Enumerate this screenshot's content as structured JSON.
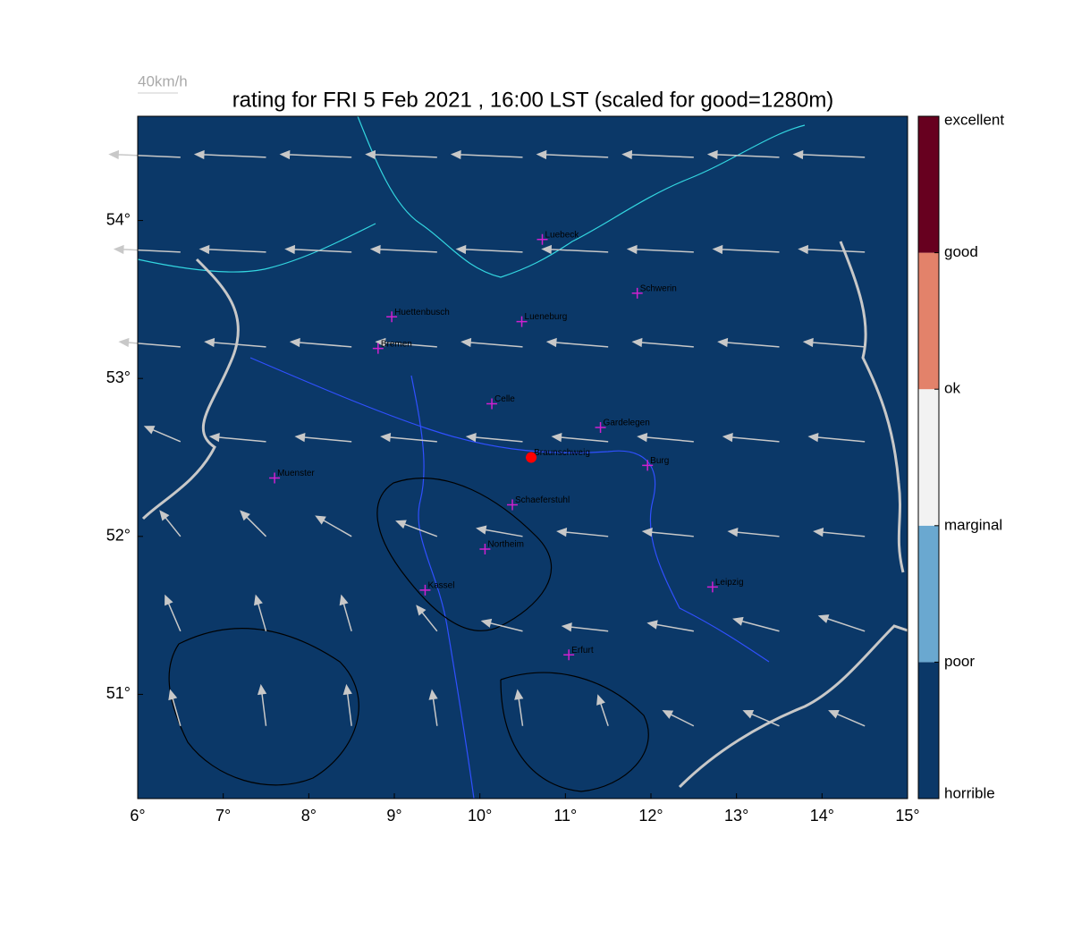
{
  "title": "rating for FRI 5 Feb 2021 , 16:00 LST (scaled for good=1280m)",
  "map": {
    "xlim": [
      6,
      15
    ],
    "ylim": [
      50.34,
      54.66
    ],
    "xticks": [
      {
        "value": 6,
        "label": "6°"
      },
      {
        "value": 7,
        "label": "7°"
      },
      {
        "value": 8,
        "label": "8°"
      },
      {
        "value": 9,
        "label": "9°"
      },
      {
        "value": 10,
        "label": "10°"
      },
      {
        "value": 11,
        "label": "11°"
      },
      {
        "value": 12,
        "label": "12°"
      },
      {
        "value": 13,
        "label": "13°"
      },
      {
        "value": 14,
        "label": "14°"
      },
      {
        "value": 15,
        "label": "15°"
      }
    ],
    "yticks": [
      {
        "value": 51,
        "label": "51°"
      },
      {
        "value": 52,
        "label": "52°"
      },
      {
        "value": 53,
        "label": "53°"
      },
      {
        "value": 54,
        "label": "54°"
      }
    ],
    "background": "#0b3868"
  },
  "site": {
    "lon": 10.6,
    "lat": 52.5,
    "color": "#ff0000"
  },
  "cities": [
    {
      "name": "Luebeck",
      "lon": 10.73,
      "lat": 53.88
    },
    {
      "name": "Schwerin",
      "lon": 11.84,
      "lat": 53.54
    },
    {
      "name": "Huettenbusch",
      "lon": 8.97,
      "lat": 53.39
    },
    {
      "name": "Lueneburg",
      "lon": 10.49,
      "lat": 53.36
    },
    {
      "name": "Bremen",
      "lon": 8.81,
      "lat": 53.19
    },
    {
      "name": "Celle",
      "lon": 10.14,
      "lat": 52.84
    },
    {
      "name": "Gardelegen",
      "lon": 11.41,
      "lat": 52.69
    },
    {
      "name": "Braunschweig",
      "lon": 10.6,
      "lat": 52.5
    },
    {
      "name": "Burg",
      "lon": 11.96,
      "lat": 52.45
    },
    {
      "name": "Muenster",
      "lon": 7.6,
      "lat": 52.37
    },
    {
      "name": "Schaeferstuhl",
      "lon": 10.38,
      "lat": 52.2
    },
    {
      "name": "Northeim",
      "lon": 10.06,
      "lat": 51.92
    },
    {
      "name": "Kassel",
      "lon": 9.36,
      "lat": 51.66
    },
    {
      "name": "Leipzig",
      "lon": 12.72,
      "lat": 51.68
    },
    {
      "name": "Erfurt",
      "lon": 11.04,
      "lat": 51.25
    }
  ],
  "wind_reference": {
    "label": "40km/h",
    "speed": 40
  },
  "wind": {
    "lons": [
      6.5,
      7.5,
      8.5,
      9.5,
      10.5,
      11.5,
      12.5,
      13.5,
      14.5
    ],
    "lats": [
      54.4,
      53.8,
      53.2,
      52.6,
      52.0,
      51.4,
      50.8
    ],
    "u": [
      [
        -70,
        -70,
        -70,
        -70,
        -70,
        -70,
        -70,
        -70,
        -70
      ],
      [
        -65,
        -65,
        -65,
        -65,
        -65,
        -65,
        -65,
        -65,
        -65
      ],
      [
        -60,
        -60,
        -60,
        -60,
        -60,
        -60,
        -60,
        -60,
        -60
      ],
      [
        -35,
        -55,
        -55,
        -55,
        -55,
        -55,
        -55,
        -55,
        -55
      ],
      [
        -20,
        -25,
        -35,
        -40,
        -45,
        -50,
        -50,
        -50,
        -50
      ],
      [
        -15,
        -10,
        -10,
        -20,
        -40,
        -45,
        -45,
        -45,
        -45
      ],
      [
        -10,
        -5,
        -5,
        -5,
        -5,
        -10,
        -30,
        -35,
        -35
      ]
    ],
    "v": [
      [
        3,
        3,
        3,
        3,
        3,
        3,
        3,
        3,
        3
      ],
      [
        3,
        3,
        3,
        3,
        3,
        3,
        3,
        3,
        3
      ],
      [
        5,
        5,
        5,
        5,
        5,
        5,
        5,
        5,
        5
      ],
      [
        15,
        5,
        5,
        5,
        5,
        5,
        5,
        5,
        5
      ],
      [
        25,
        25,
        20,
        15,
        8,
        5,
        5,
        5,
        5
      ],
      [
        35,
        35,
        35,
        25,
        10,
        5,
        8,
        12,
        15
      ],
      [
        35,
        40,
        40,
        35,
        35,
        30,
        15,
        15,
        15
      ]
    ]
  },
  "colorbar": {
    "labels": [
      "horrible",
      "poor",
      "marginal",
      "ok",
      "good",
      "excellent"
    ],
    "colors": [
      "#0b3868",
      "#6aa8d0",
      "#f2f2f2",
      "#e3826a",
      "#67001f"
    ]
  }
}
